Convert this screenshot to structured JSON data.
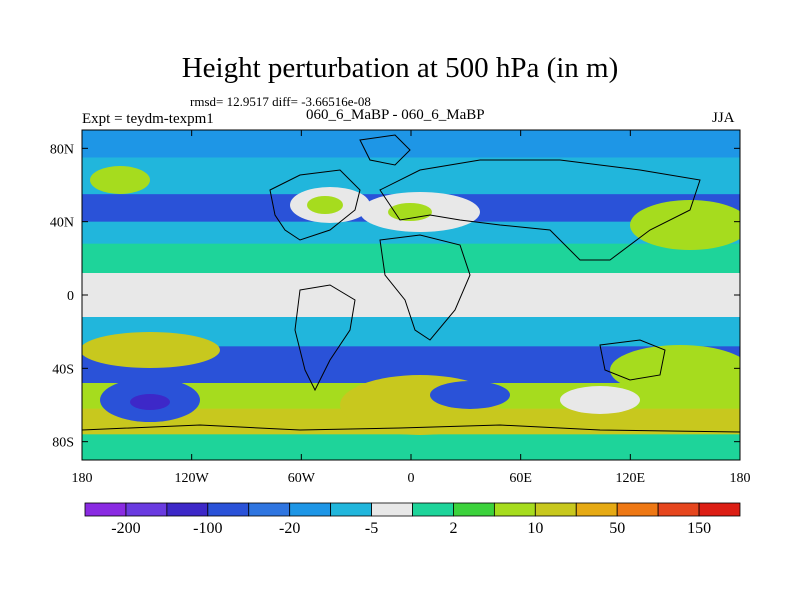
{
  "title": "Height perturbation at 500 hPa (in m)",
  "stats": "rmsd= 12.9517 diff= -3.66516e-08",
  "experiment": "Expt = teydm-texpm1",
  "comparison": "060_6_MaBP - 060_6_MaBP",
  "season": "JJA",
  "lat_ticks": [
    "80N",
    "40N",
    "0",
    "40S",
    "80S"
  ],
  "lon_ticks": [
    "180",
    "120W",
    "60W",
    "0",
    "60E",
    "120E",
    "180"
  ],
  "colorbar": {
    "colors": [
      "#8a2be2",
      "#6a3be0",
      "#3d28c8",
      "#2a52d8",
      "#2f75e0",
      "#1e96e6",
      "#21b6dc",
      "#e8e8e8",
      "#1ed49a",
      "#3cd23c",
      "#a6dc1e",
      "#c8c81e",
      "#e6aa14",
      "#ee7814",
      "#e6461e",
      "#dc1e14"
    ],
    "labels": [
      "-200",
      "-100",
      "-20",
      "-5",
      "2",
      "10",
      "50",
      "150"
    ]
  },
  "map": {
    "bands": [
      {
        "lat": 90,
        "color": "#1e96e6"
      },
      {
        "lat": 75,
        "color": "#21b6dc"
      },
      {
        "lat": 55,
        "color": "#2a52d8"
      },
      {
        "lat": 40,
        "color": "#21b6dc"
      },
      {
        "lat": 28,
        "color": "#1ed49a"
      },
      {
        "lat": 12,
        "color": "#e8e8e8"
      },
      {
        "lat": -12,
        "color": "#21b6dc"
      },
      {
        "lat": -28,
        "color": "#2a52d8"
      },
      {
        "lat": -48,
        "color": "#a6dc1e"
      },
      {
        "lat": -62,
        "color": "#c8c81e"
      },
      {
        "lat": -76,
        "color": "#1ed49a"
      }
    ]
  }
}
